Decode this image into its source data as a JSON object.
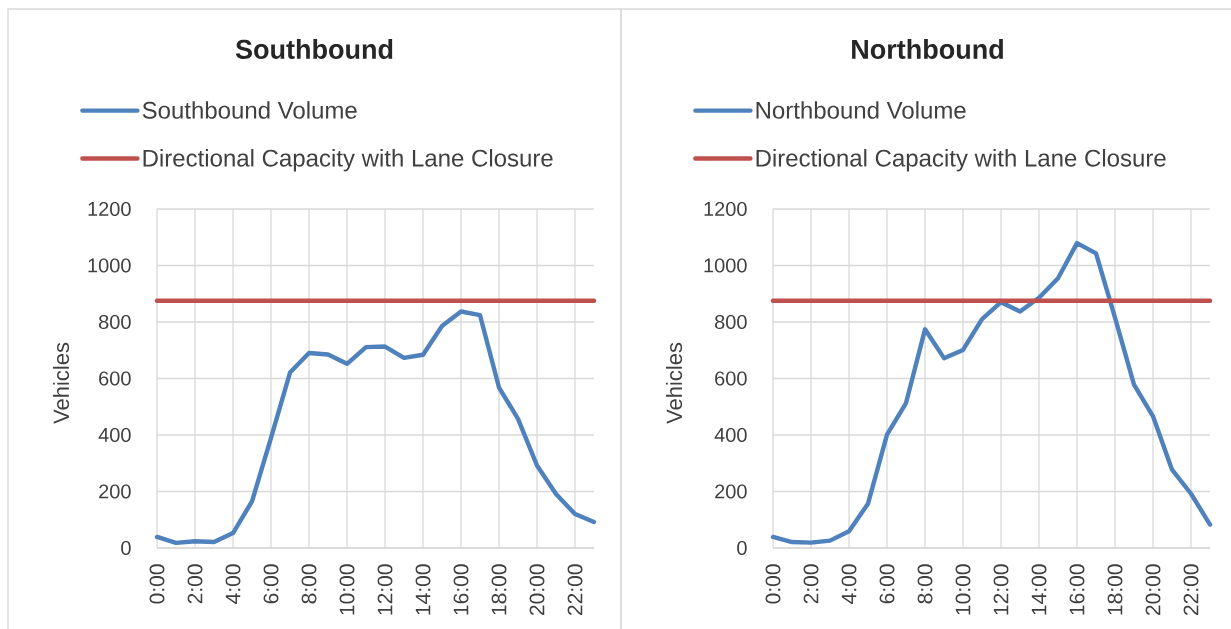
{
  "chart_data": [
    {
      "type": "line",
      "title": "Southbound",
      "ylabel": "Vehicles",
      "x": [
        0,
        1,
        2,
        3,
        4,
        5,
        6,
        7,
        8,
        9,
        10,
        11,
        12,
        13,
        14,
        15,
        16,
        17,
        18,
        19,
        20,
        21,
        22,
        23
      ],
      "series": [
        {
          "name": "Southbound Volume",
          "color": "#4f81bd",
          "values": [
            39,
            18,
            24,
            21,
            53,
            165,
            390,
            621,
            690,
            685,
            652,
            711,
            713,
            673,
            684,
            786,
            837,
            824,
            568,
            457,
            292,
            191,
            120,
            92
          ]
        },
        {
          "name": "Directional Capacity with Lane Closure",
          "color": "#c0504d",
          "values": [
            875,
            875,
            875,
            875,
            875,
            875,
            875,
            875,
            875,
            875,
            875,
            875,
            875,
            875,
            875,
            875,
            875,
            875,
            875,
            875,
            875,
            875,
            875,
            875
          ]
        }
      ],
      "xlim": [
        0,
        23
      ],
      "xticks": [
        {
          "value": 0,
          "label": "0:00"
        },
        {
          "value": 2,
          "label": "2:00"
        },
        {
          "value": 4,
          "label": "4:00"
        },
        {
          "value": 6,
          "label": "6:00"
        },
        {
          "value": 8,
          "label": "8:00"
        },
        {
          "value": 10,
          "label": "10:00"
        },
        {
          "value": 12,
          "label": "12:00"
        },
        {
          "value": 14,
          "label": "14:00"
        },
        {
          "value": 16,
          "label": "16:00"
        },
        {
          "value": 18,
          "label": "18:00"
        },
        {
          "value": 20,
          "label": "20:00"
        },
        {
          "value": 22,
          "label": "22:00"
        }
      ],
      "ylim": [
        0,
        1200
      ],
      "yticks": [
        0,
        200,
        400,
        600,
        800,
        1000,
        1200
      ],
      "grid": true,
      "legend": "top"
    },
    {
      "type": "line",
      "title": "Northbound",
      "ylabel": "Vehicles",
      "x": [
        0,
        1,
        2,
        3,
        4,
        5,
        6,
        7,
        8,
        9,
        10,
        11,
        12,
        13,
        14,
        15,
        16,
        17,
        18,
        19,
        20,
        21,
        22,
        23
      ],
      "series": [
        {
          "name": "Northbound Volume",
          "color": "#4f81bd",
          "values": [
            39,
            21,
            19,
            26,
            59,
            157,
            401,
            513,
            774,
            672,
            701,
            810,
            870,
            837,
            886,
            955,
            1079,
            1043,
            815,
            578,
            466,
            277,
            192,
            83
          ]
        },
        {
          "name": "Directional Capacity with Lane Closure",
          "color": "#c0504d",
          "values": [
            875,
            875,
            875,
            875,
            875,
            875,
            875,
            875,
            875,
            875,
            875,
            875,
            875,
            875,
            875,
            875,
            875,
            875,
            875,
            875,
            875,
            875,
            875,
            875
          ]
        }
      ],
      "xlim": [
        0,
        23
      ],
      "xticks": [
        {
          "value": 0,
          "label": "0:00"
        },
        {
          "value": 2,
          "label": "2:00"
        },
        {
          "value": 4,
          "label": "4:00"
        },
        {
          "value": 6,
          "label": "6:00"
        },
        {
          "value": 8,
          "label": "8:00"
        },
        {
          "value": 10,
          "label": "10:00"
        },
        {
          "value": 12,
          "label": "12:00"
        },
        {
          "value": 14,
          "label": "14:00"
        },
        {
          "value": 16,
          "label": "16:00"
        },
        {
          "value": 18,
          "label": "18:00"
        },
        {
          "value": 20,
          "label": "20:00"
        },
        {
          "value": 22,
          "label": "22:00"
        }
      ],
      "ylim": [
        0,
        1200
      ],
      "yticks": [
        0,
        200,
        400,
        600,
        800,
        1000,
        1200
      ],
      "grid": true,
      "legend": "top"
    }
  ]
}
